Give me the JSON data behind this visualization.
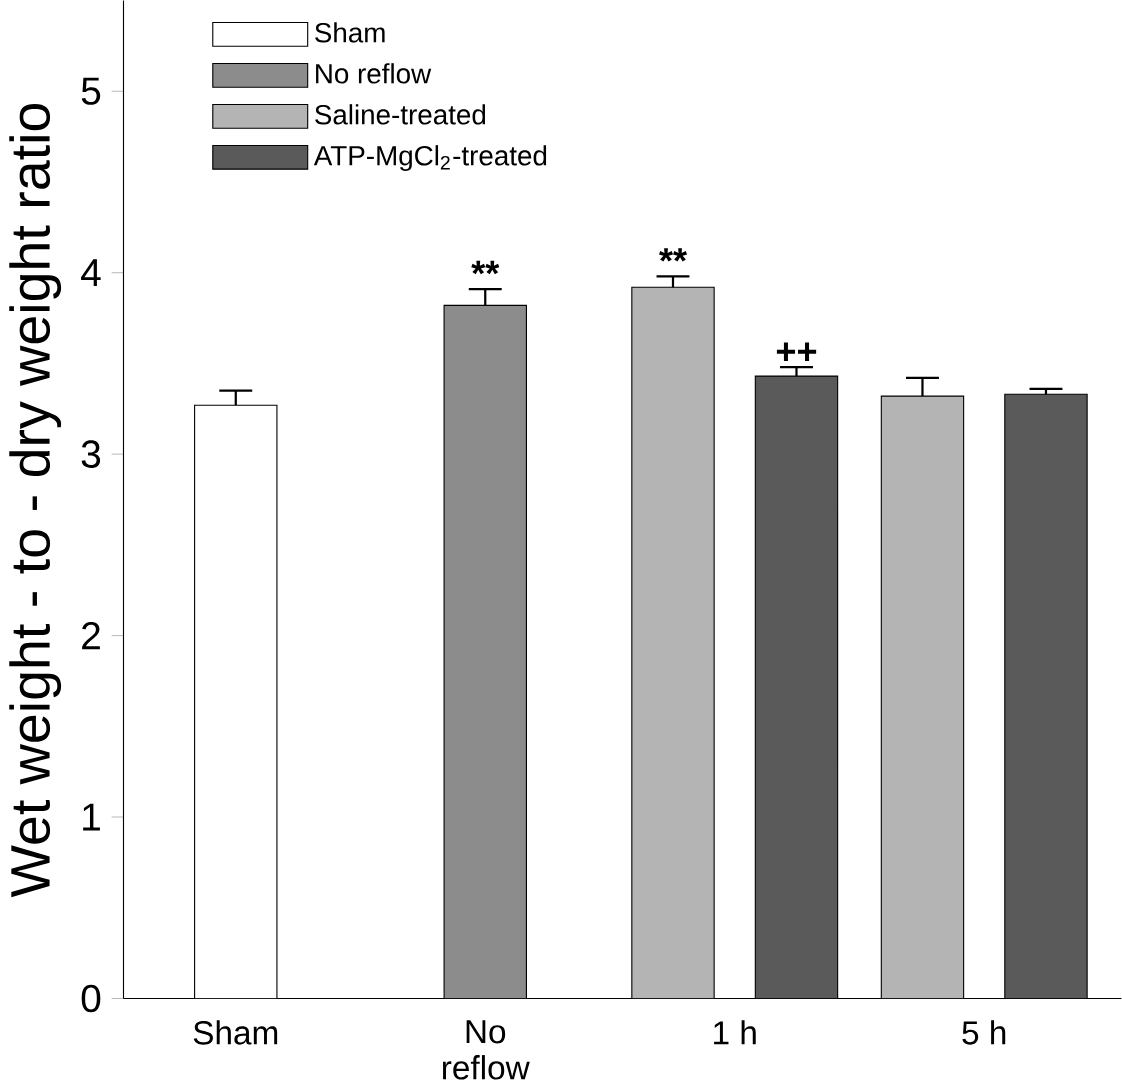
{
  "chart_data": {
    "type": "bar",
    "ylabel": "Wet weight - to - dry weight ratio",
    "categories": [
      "Sham",
      "No\nreflow",
      "1 h",
      "5 h"
    ],
    "series": [
      {
        "name": "Sham",
        "color": "#ffffff",
        "values": [
          3.27,
          null,
          null,
          null
        ],
        "errors": [
          0.08,
          null,
          null,
          null
        ]
      },
      {
        "name": "No reflow",
        "color": "#8c8c8c",
        "values": [
          null,
          3.82,
          null,
          null
        ],
        "errors": [
          null,
          0.09,
          null,
          null
        ]
      },
      {
        "name": "Saline-treated",
        "color": "#b4b4b4",
        "values": [
          null,
          null,
          3.92,
          3.32
        ],
        "errors": [
          null,
          null,
          0.06,
          0.1
        ]
      },
      {
        "name": "ATP-MgCl$_{2}$-treated",
        "color": "#5a5a5a",
        "values": [
          null,
          null,
          3.43,
          3.33
        ],
        "errors": [
          null,
          null,
          0.05,
          0.03
        ]
      }
    ],
    "annotations": [
      "**",
      "**",
      "++"
    ],
    "ylim": [
      0,
      5.5
    ],
    "yticks": [
      0,
      1,
      2,
      3,
      4,
      5
    ],
    "legend": "top left",
    "grid": false
  }
}
